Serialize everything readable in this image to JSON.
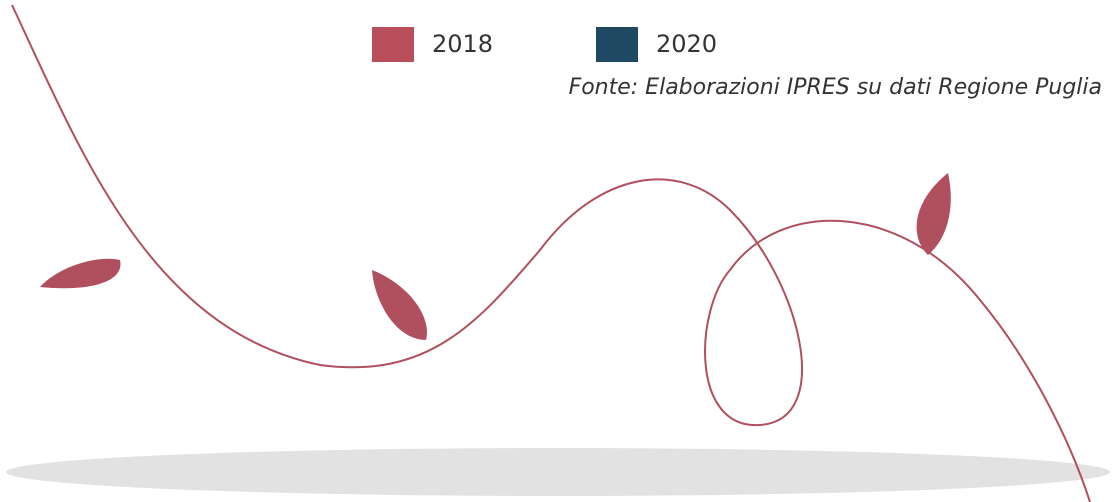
{
  "legend": {
    "items": [
      {
        "name": "2018",
        "color": "#b84f5b"
      },
      {
        "name": "2020",
        "color": "#1f4963"
      }
    ]
  },
  "source": "Fonte: Elaborazioni IPRES su dati Regione Puglia"
}
